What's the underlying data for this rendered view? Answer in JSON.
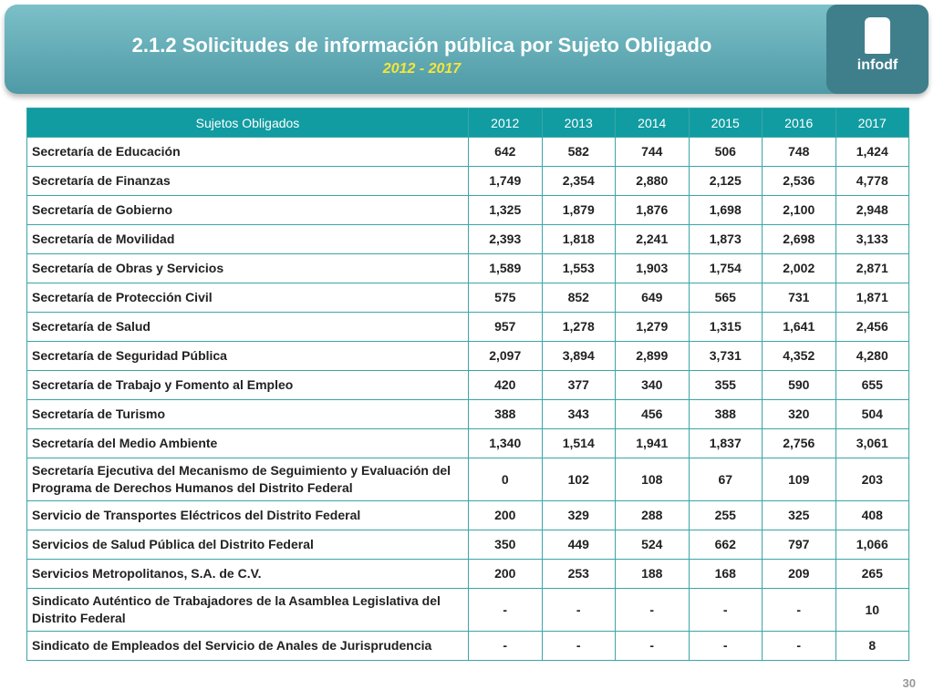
{
  "header": {
    "title": "2.1.2 Solicitudes de información pública por Sujeto Obligado",
    "subtitle": "2012 - 2017",
    "logo": "infodf"
  },
  "table": {
    "columns": [
      "Sujetos Obligados",
      "2012",
      "2013",
      "2014",
      "2015",
      "2016",
      "2017"
    ],
    "rows": [
      [
        "Secretaría de Educación",
        "642",
        "582",
        "744",
        "506",
        "748",
        "1,424"
      ],
      [
        "Secretaría de Finanzas",
        "1,749",
        "2,354",
        "2,880",
        "2,125",
        "2,536",
        "4,778"
      ],
      [
        "Secretaría de Gobierno",
        "1,325",
        "1,879",
        "1,876",
        "1,698",
        "2,100",
        "2,948"
      ],
      [
        "Secretaría de Movilidad",
        "2,393",
        "1,818",
        "2,241",
        "1,873",
        "2,698",
        "3,133"
      ],
      [
        "Secretaría de Obras y Servicios",
        "1,589",
        "1,553",
        "1,903",
        "1,754",
        "2,002",
        "2,871"
      ],
      [
        "Secretaría de Protección Civil",
        "575",
        "852",
        "649",
        "565",
        "731",
        "1,871"
      ],
      [
        "Secretaría de Salud",
        "957",
        "1,278",
        "1,279",
        "1,315",
        "1,641",
        "2,456"
      ],
      [
        "Secretaría de Seguridad Pública",
        "2,097",
        "3,894",
        "2,899",
        "3,731",
        "4,352",
        "4,280"
      ],
      [
        "Secretaría de Trabajo y Fomento al Empleo",
        "420",
        "377",
        "340",
        "355",
        "590",
        "655"
      ],
      [
        "Secretaría de Turismo",
        "388",
        "343",
        "456",
        "388",
        "320",
        "504"
      ],
      [
        "Secretaría del Medio Ambiente",
        "1,340",
        "1,514",
        "1,941",
        "1,837",
        "2,756",
        "3,061"
      ],
      [
        "Secretaría Ejecutiva del Mecanismo de Seguimiento y Evaluación del Programa de Derechos Humanos del Distrito Federal",
        "0",
        "102",
        "108",
        "67",
        "109",
        "203"
      ],
      [
        "Servicio de Transportes Eléctricos del Distrito Federal",
        "200",
        "329",
        "288",
        "255",
        "325",
        "408"
      ],
      [
        "Servicios de Salud Pública del Distrito Federal",
        "350",
        "449",
        "524",
        "662",
        "797",
        "1,066"
      ],
      [
        "Servicios Metropolitanos, S.A. de C.V.",
        "200",
        "253",
        "188",
        "168",
        "209",
        "265"
      ],
      [
        "Sindicato Auténtico de Trabajadores de la Asamblea Legislativa del Distrito Federal",
        "-",
        "-",
        "-",
        "-",
        "-",
        "10"
      ],
      [
        "Sindicato de Empleados del Servicio de Anales de Jurisprudencia",
        "-",
        "-",
        "-",
        "-",
        "-",
        "8"
      ]
    ]
  },
  "footer": {
    "page": "30"
  }
}
